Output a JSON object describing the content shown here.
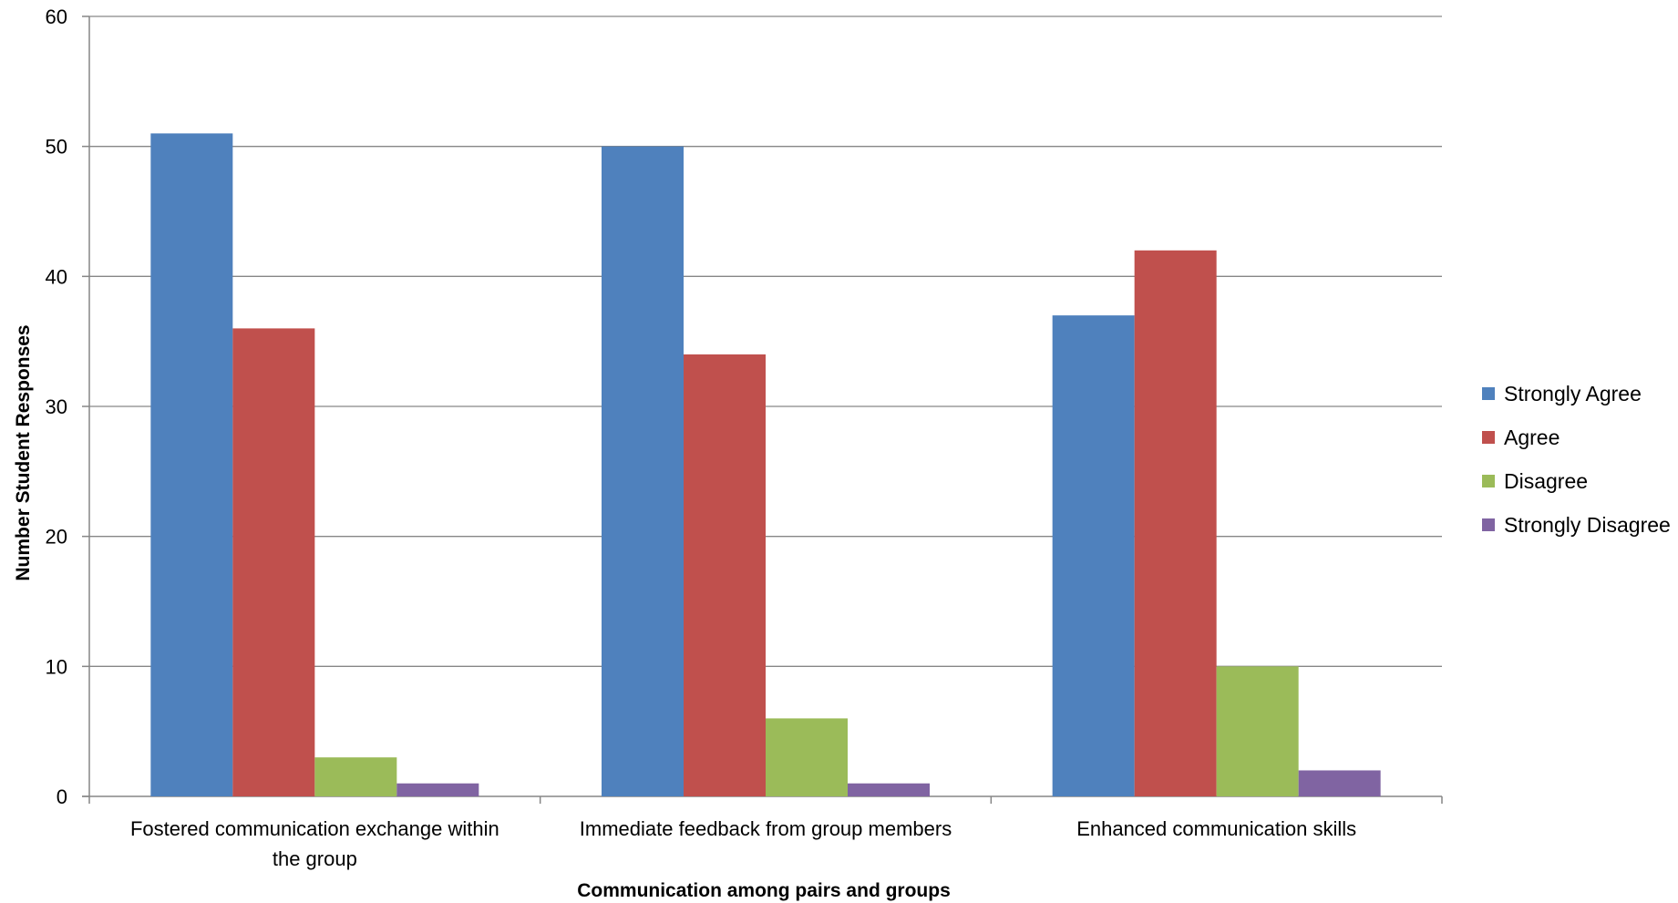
{
  "chart_data": {
    "type": "bar",
    "title": "",
    "xlabel": "Communication among pairs and groups",
    "ylabel": "Number Student Responses",
    "ylim": [
      0,
      60
    ],
    "yticks": [
      0,
      10,
      20,
      30,
      40,
      50,
      60
    ],
    "grid": true,
    "legend": "right",
    "categories": [
      [
        "Fostered communication exchange within",
        "the group"
      ],
      [
        "Immediate feedback from group members"
      ],
      [
        "Enhanced communication skills"
      ]
    ],
    "series": [
      {
        "name": "Strongly Agree",
        "color": "#4F81BD",
        "values": [
          51,
          50,
          37
        ]
      },
      {
        "name": "Agree",
        "color": "#C0504D",
        "values": [
          36,
          34,
          42
        ]
      },
      {
        "name": "Disagree",
        "color": "#9BBB59",
        "values": [
          3,
          6,
          10
        ]
      },
      {
        "name": "Strongly Disagree",
        "color": "#8064A2",
        "values": [
          1,
          1,
          2
        ]
      }
    ]
  }
}
